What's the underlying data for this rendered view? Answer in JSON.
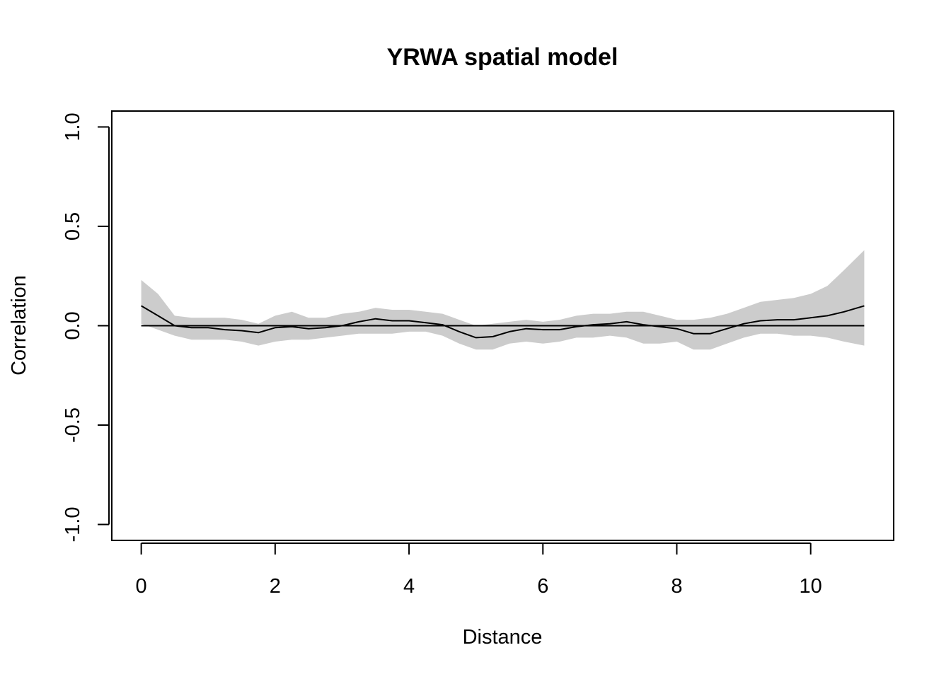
{
  "chart_data": {
    "type": "line",
    "title": "YRWA spatial model",
    "xlabel": "Distance",
    "ylabel": "Correlation",
    "xlim": [
      -0.44,
      11.24
    ],
    "ylim": [
      -1.08,
      1.08
    ],
    "x_ticks": [
      0,
      2,
      4,
      6,
      8,
      10
    ],
    "x_tick_labels": [
      "0",
      "2",
      "4",
      "6",
      "8",
      "10"
    ],
    "y_ticks": [
      -1.0,
      -0.5,
      0.0,
      0.5,
      1.0
    ],
    "y_tick_labels": [
      "-1.0",
      "-0.5",
      "0.0",
      "0.5",
      "1.0"
    ],
    "grid": false,
    "reference_line_y": 0,
    "colors": {
      "band": "#cccccc",
      "line": "#000000",
      "axes": "#000000"
    },
    "series": [
      {
        "x": [
          0.0,
          0.25,
          0.5,
          0.75,
          1.0,
          1.25,
          1.5,
          1.75,
          2.0,
          2.25,
          2.5,
          2.75,
          3.0,
          3.25,
          3.5,
          3.75,
          4.0,
          4.25,
          4.5,
          4.75,
          5.0,
          5.25,
          5.5,
          5.75,
          6.0,
          6.25,
          6.5,
          6.75,
          7.0,
          7.25,
          7.5,
          7.75,
          8.0,
          8.25,
          8.5,
          8.75,
          9.0,
          9.25,
          9.5,
          9.75,
          10.0,
          10.25,
          10.5,
          10.8
        ],
        "y": [
          0.1,
          0.05,
          0.0,
          -0.01,
          -0.01,
          -0.02,
          -0.025,
          -0.035,
          -0.01,
          -0.005,
          -0.015,
          -0.01,
          0.0,
          0.02,
          0.035,
          0.025,
          0.025,
          0.015,
          0.005,
          -0.03,
          -0.06,
          -0.055,
          -0.03,
          -0.015,
          -0.02,
          -0.02,
          -0.005,
          0.005,
          0.01,
          0.02,
          0.005,
          -0.005,
          -0.015,
          -0.04,
          -0.04,
          -0.015,
          0.01,
          0.025,
          0.03,
          0.03,
          0.04,
          0.05,
          0.07,
          0.1
        ],
        "lower": [
          0.01,
          -0.02,
          -0.05,
          -0.07,
          -0.07,
          -0.07,
          -0.08,
          -0.1,
          -0.08,
          -0.07,
          -0.07,
          -0.06,
          -0.05,
          -0.04,
          -0.04,
          -0.04,
          -0.03,
          -0.03,
          -0.05,
          -0.09,
          -0.12,
          -0.12,
          -0.09,
          -0.08,
          -0.09,
          -0.08,
          -0.06,
          -0.06,
          -0.05,
          -0.06,
          -0.09,
          -0.09,
          -0.08,
          -0.12,
          -0.12,
          -0.09,
          -0.06,
          -0.04,
          -0.04,
          -0.05,
          -0.05,
          -0.06,
          -0.08,
          -0.1
        ],
        "upper": [
          0.23,
          0.16,
          0.05,
          0.04,
          0.04,
          0.04,
          0.03,
          0.01,
          0.05,
          0.07,
          0.04,
          0.04,
          0.06,
          0.07,
          0.09,
          0.08,
          0.08,
          0.07,
          0.06,
          0.03,
          0.0,
          0.01,
          0.02,
          0.03,
          0.02,
          0.03,
          0.05,
          0.06,
          0.06,
          0.07,
          0.07,
          0.05,
          0.03,
          0.03,
          0.04,
          0.06,
          0.09,
          0.12,
          0.13,
          0.14,
          0.16,
          0.2,
          0.28,
          0.38
        ]
      }
    ]
  }
}
